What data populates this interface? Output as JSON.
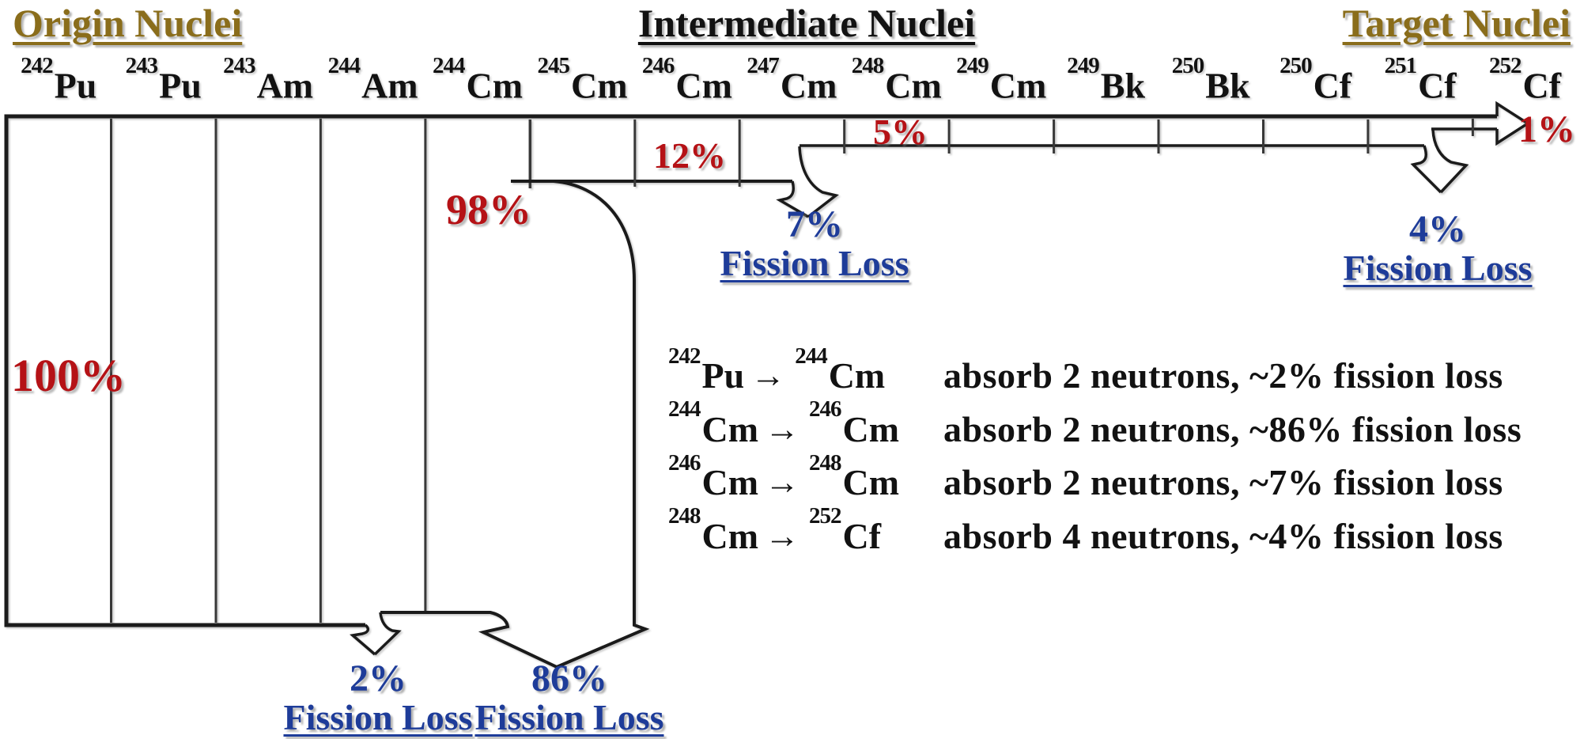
{
  "headers": {
    "origin": "Origin Nuclei",
    "intermediate": "Intermediate Nuclei",
    "target": "Target Nuclei"
  },
  "nuclides": [
    {
      "mass": "242",
      "symbol": "Pu",
      "gold": true
    },
    {
      "mass": "243",
      "symbol": "Pu",
      "gold": false
    },
    {
      "mass": "243",
      "symbol": "Am",
      "gold": false
    },
    {
      "mass": "244",
      "symbol": "Am",
      "gold": false
    },
    {
      "mass": "244",
      "symbol": "Cm",
      "gold": false
    },
    {
      "mass": "245",
      "symbol": "Cm",
      "gold": false
    },
    {
      "mass": "246",
      "symbol": "Cm",
      "gold": false
    },
    {
      "mass": "247",
      "symbol": "Cm",
      "gold": false
    },
    {
      "mass": "248",
      "symbol": "Cm",
      "gold": false
    },
    {
      "mass": "249",
      "symbol": "Cm",
      "gold": false
    },
    {
      "mass": "249",
      "symbol": "Bk",
      "gold": false
    },
    {
      "mass": "250",
      "symbol": "Bk",
      "gold": false
    },
    {
      "mass": "250",
      "symbol": "Cf",
      "gold": false
    },
    {
      "mass": "251",
      "symbol": "Cf",
      "gold": false
    },
    {
      "mass": "252",
      "symbol": "Cf",
      "gold": true
    }
  ],
  "flow_percentages": {
    "initial": "100%",
    "after_cm244": "98%",
    "after_cm246": "12%",
    "after_cm248": "5%",
    "final": "1%"
  },
  "fission_losses": [
    {
      "percent": "2%",
      "label": "Fission Loss"
    },
    {
      "percent": "86%",
      "label": "Fission Loss"
    },
    {
      "percent": "7%",
      "label": "Fission Loss"
    },
    {
      "percent": "4%",
      "label": "Fission Loss"
    }
  ],
  "reactions": [
    {
      "from": {
        "mass": "242",
        "symbol": "Pu"
      },
      "arrow": "→",
      "to": {
        "mass": "244",
        "symbol": "Cm"
      },
      "description": "absorb 2 neutrons, ~2% fission loss"
    },
    {
      "from": {
        "mass": "244",
        "symbol": "Cm"
      },
      "arrow": "→",
      "to": {
        "mass": "246",
        "symbol": "Cm"
      },
      "description": "absorb 2 neutrons, ~86% fission loss"
    },
    {
      "from": {
        "mass": "246",
        "symbol": "Cm"
      },
      "arrow": "→",
      "to": {
        "mass": "248",
        "symbol": "Cm"
      },
      "description": "absorb 2 neutrons, ~7% fission loss"
    },
    {
      "from": {
        "mass": "248",
        "symbol": "Cm"
      },
      "arrow": "→",
      "to": {
        "mass": "252",
        "symbol": "Cf"
      },
      "description": "absorb 4 neutrons, ~4% fission loss"
    }
  ],
  "colors": {
    "gold": "#8a6d1b",
    "red": "#b51216",
    "blue": "#1e3c99",
    "line": "#1b1b1b",
    "tick": "#383838"
  }
}
